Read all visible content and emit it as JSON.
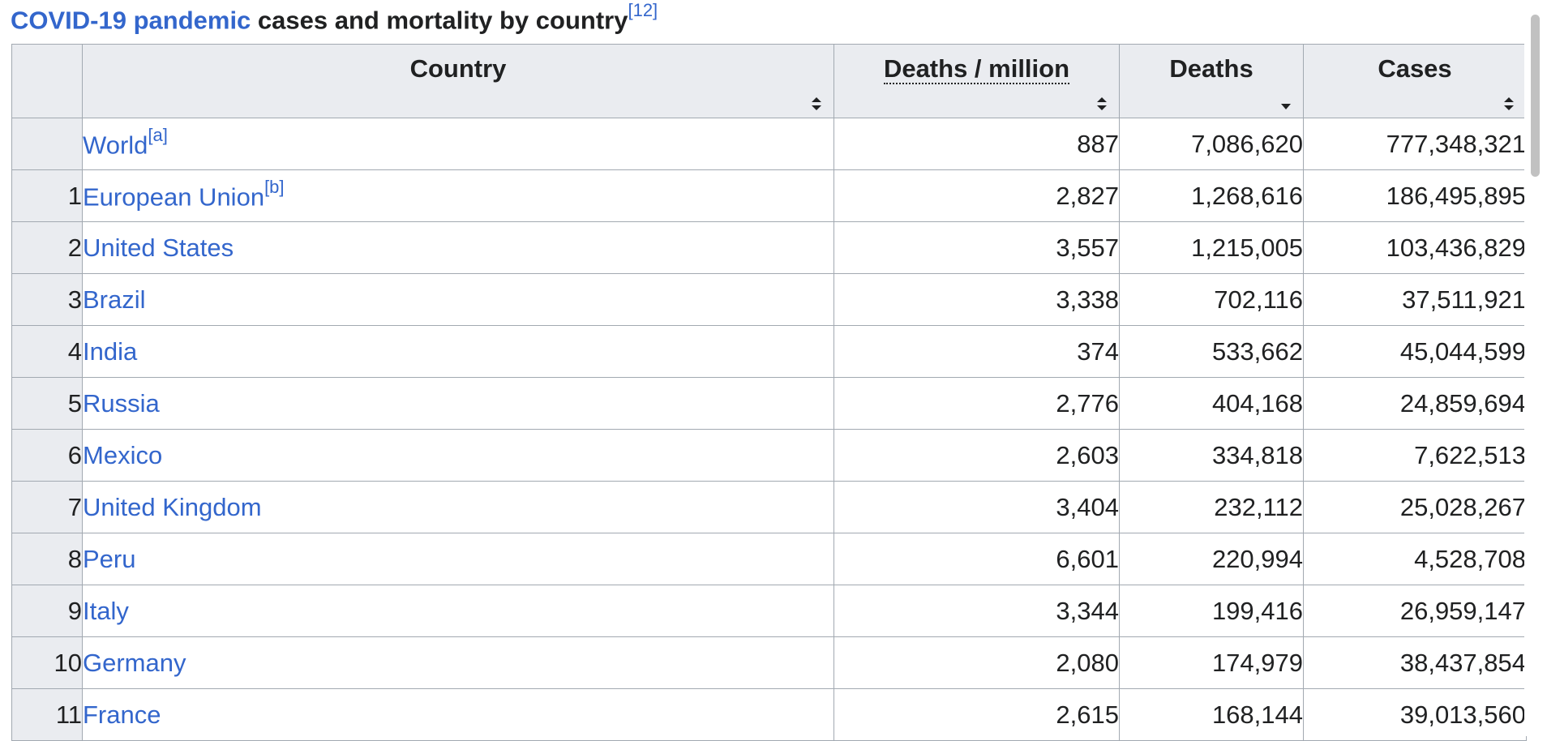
{
  "caption": {
    "link": "COVID-19 pandemic",
    "text": " cases and mortality by country",
    "ref": "[12]"
  },
  "table": {
    "headers": {
      "country": "Country",
      "deaths_per_million": "Deaths / million",
      "deaths": "Deaths",
      "cases": "Cases"
    },
    "rows": [
      {
        "rank": "",
        "country": "World",
        "note": "[a]",
        "dpm": "887",
        "deaths": "7,086,620",
        "cases": "777,348,321"
      },
      {
        "rank": "1",
        "country": "European Union",
        "note": "[b]",
        "dpm": "2,827",
        "deaths": "1,268,616",
        "cases": "186,495,895"
      },
      {
        "rank": "2",
        "country": "United States",
        "note": "",
        "dpm": "3,557",
        "deaths": "1,215,005",
        "cases": "103,436,829"
      },
      {
        "rank": "3",
        "country": "Brazil",
        "note": "",
        "dpm": "3,338",
        "deaths": "702,116",
        "cases": "37,511,921"
      },
      {
        "rank": "4",
        "country": "India",
        "note": "",
        "dpm": "374",
        "deaths": "533,662",
        "cases": "45,044,599"
      },
      {
        "rank": "5",
        "country": "Russia",
        "note": "",
        "dpm": "2,776",
        "deaths": "404,168",
        "cases": "24,859,694"
      },
      {
        "rank": "6",
        "country": "Mexico",
        "note": "",
        "dpm": "2,603",
        "deaths": "334,818",
        "cases": "7,622,513"
      },
      {
        "rank": "7",
        "country": "United Kingdom",
        "note": "",
        "dpm": "3,404",
        "deaths": "232,112",
        "cases": "25,028,267"
      },
      {
        "rank": "8",
        "country": "Peru",
        "note": "",
        "dpm": "6,601",
        "deaths": "220,994",
        "cases": "4,528,708"
      },
      {
        "rank": "9",
        "country": "Italy",
        "note": "",
        "dpm": "3,344",
        "deaths": "199,416",
        "cases": "26,959,147"
      },
      {
        "rank": "10",
        "country": "Germany",
        "note": "",
        "dpm": "2,080",
        "deaths": "174,979",
        "cases": "38,437,854"
      },
      {
        "rank": "11",
        "country": "France",
        "note": "",
        "dpm": "2,615",
        "deaths": "168,144",
        "cases": "39,013,560"
      }
    ]
  },
  "colors": {
    "link": "#3366cc",
    "header_bg": "#eaecf0",
    "border": "#a2a9b1"
  },
  "icons": {
    "sort_both": "sort-arrows-icon",
    "sort_desc": "sort-desc-icon"
  }
}
